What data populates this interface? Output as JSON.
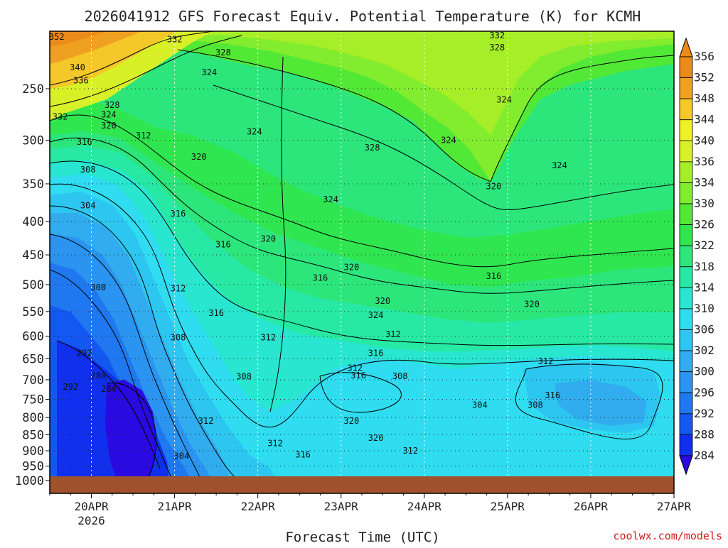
{
  "chart_data": {
    "type": "heatmap",
    "title": "2026041912 GFS Forecast Equiv. Potential Temperature (K) for KCMH",
    "xlabel": "Forecast Time (UTC)",
    "ylabel": "",
    "credit": "coolwx.com/models",
    "x_ticks": [
      {
        "label": "20APR",
        "sub": "2026",
        "hours": 12
      },
      {
        "label": "21APR",
        "sub": "",
        "hours": 36
      },
      {
        "label": "22APR",
        "sub": "",
        "hours": 60
      },
      {
        "label": "23APR",
        "sub": "",
        "hours": 84
      },
      {
        "label": "24APR",
        "sub": "",
        "hours": 108
      },
      {
        "label": "25APR",
        "sub": "",
        "hours": 132
      },
      {
        "label": "26APR",
        "sub": "",
        "hours": 156
      },
      {
        "label": "27APR",
        "sub": "",
        "hours": 180
      }
    ],
    "xlim_hours": [
      0,
      180
    ],
    "y_ticks": [
      250,
      300,
      350,
      400,
      450,
      500,
      550,
      600,
      650,
      700,
      750,
      800,
      850,
      900,
      950,
      1000
    ],
    "ylim_hpa": [
      200,
      1000
    ],
    "ground_hpa": 985,
    "colorbar": {
      "values": [
        284,
        288,
        292,
        296,
        300,
        302,
        306,
        310,
        314,
        318,
        322,
        326,
        330,
        334,
        336,
        340,
        344,
        348,
        352,
        356
      ],
      "colors": [
        "#2a0ae0",
        "#1030ee",
        "#1458f2",
        "#1f78f0",
        "#2a94f0",
        "#31acee",
        "#2dc6f0",
        "#2fdcf0",
        "#28e6cf",
        "#28e8a6",
        "#2ce67c",
        "#30e650",
        "#52e836",
        "#82ec2e",
        "#a6ee28",
        "#d8f028",
        "#f0f028",
        "#f4c828",
        "#f0a020",
        "#ec8a1a"
      ]
    },
    "contour_labels": [
      {
        "value": "352",
        "hours": 2,
        "hpa": 208
      },
      {
        "value": "340",
        "hours": 8,
        "hpa": 232
      },
      {
        "value": "336",
        "hours": 9,
        "hpa": 243
      },
      {
        "value": "328",
        "hours": 18,
        "hpa": 265
      },
      {
        "value": "324",
        "hours": 17,
        "hpa": 274
      },
      {
        "value": "332",
        "hours": 3,
        "hpa": 276
      },
      {
        "value": "320",
        "hours": 17,
        "hpa": 285
      },
      {
        "value": "312",
        "hours": 27,
        "hpa": 295
      },
      {
        "value": "316",
        "hours": 10,
        "hpa": 302
      },
      {
        "value": "308",
        "hours": 11,
        "hpa": 333
      },
      {
        "value": "304",
        "hours": 11,
        "hpa": 378
      },
      {
        "value": "300",
        "hours": 14,
        "hpa": 505
      },
      {
        "value": "292",
        "hours": 10,
        "hpa": 637
      },
      {
        "value": "288",
        "hours": 14,
        "hpa": 690
      },
      {
        "value": "284",
        "hours": 17,
        "hpa": 723
      },
      {
        "value": "292",
        "hours": 6,
        "hpa": 718
      },
      {
        "value": "332",
        "hours": 36,
        "hpa": 210
      },
      {
        "value": "328",
        "hours": 50,
        "hpa": 220
      },
      {
        "value": "324",
        "hours": 46,
        "hpa": 236
      },
      {
        "value": "320",
        "hours": 43,
        "hpa": 318
      },
      {
        "value": "316",
        "hours": 37,
        "hpa": 389
      },
      {
        "value": "316",
        "hours": 50,
        "hpa": 434
      },
      {
        "value": "312",
        "hours": 37,
        "hpa": 507
      },
      {
        "value": "316",
        "hours": 48,
        "hpa": 553
      },
      {
        "value": "308",
        "hours": 37,
        "hpa": 603
      },
      {
        "value": "312",
        "hours": 45,
        "hpa": 810
      },
      {
        "value": "304",
        "hours": 38,
        "hpa": 917
      },
      {
        "value": "324",
        "hours": 59,
        "hpa": 291
      },
      {
        "value": "320",
        "hours": 63,
        "hpa": 425
      },
      {
        "value": "312",
        "hours": 63,
        "hpa": 603
      },
      {
        "value": "308",
        "hours": 56,
        "hpa": 692
      },
      {
        "value": "312",
        "hours": 65,
        "hpa": 877
      },
      {
        "value": "316",
        "hours": 73,
        "hpa": 912
      },
      {
        "value": "324",
        "hours": 81,
        "hpa": 370
      },
      {
        "value": "316",
        "hours": 78,
        "hpa": 488
      },
      {
        "value": "320",
        "hours": 87,
        "hpa": 470
      },
      {
        "value": "328",
        "hours": 93,
        "hpa": 308
      },
      {
        "value": "324",
        "hours": 94,
        "hpa": 557
      },
      {
        "value": "312",
        "hours": 88,
        "hpa": 672
      },
      {
        "value": "316",
        "hours": 89,
        "hpa": 690
      },
      {
        "value": "316",
        "hours": 94,
        "hpa": 637
      },
      {
        "value": "320",
        "hours": 87,
        "hpa": 810
      },
      {
        "value": "320",
        "hours": 96,
        "hpa": 530
      },
      {
        "value": "312",
        "hours": 99,
        "hpa": 596
      },
      {
        "value": "320",
        "hours": 94,
        "hpa": 860
      },
      {
        "value": "308",
        "hours": 101,
        "hpa": 691
      },
      {
        "value": "312",
        "hours": 104,
        "hpa": 900
      },
      {
        "value": "332",
        "hours": 129,
        "hpa": 207
      },
      {
        "value": "328",
        "hours": 129,
        "hpa": 216
      },
      {
        "value": "324",
        "hours": 131,
        "hpa": 260
      },
      {
        "value": "324",
        "hours": 115,
        "hpa": 300
      },
      {
        "value": "320",
        "hours": 128,
        "hpa": 353
      },
      {
        "value": "316",
        "hours": 128,
        "hpa": 485
      },
      {
        "value": "304",
        "hours": 124,
        "hpa": 765
      },
      {
        "value": "320",
        "hours": 139,
        "hpa": 536
      },
      {
        "value": "308",
        "hours": 140,
        "hpa": 765
      },
      {
        "value": "324",
        "hours": 147,
        "hpa": 328
      },
      {
        "value": "312",
        "hours": 143,
        "hpa": 656
      },
      {
        "value": "316",
        "hours": 145,
        "hpa": 740
      }
    ]
  }
}
